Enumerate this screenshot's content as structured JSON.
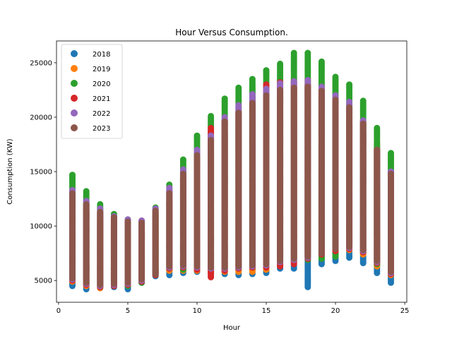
{
  "chart_data": {
    "type": "scatter",
    "title": "Hour Versus Consumption.",
    "xlabel": "Hour",
    "ylabel": "Consumption (KW)",
    "xlim": [
      -0.15,
      25.15
    ],
    "ylim": [
      3000,
      27000
    ],
    "xticks": [
      0,
      5,
      10,
      15,
      20,
      25
    ],
    "yticks": [
      5000,
      10000,
      15000,
      20000,
      25000
    ],
    "grid": false,
    "legend_position": "top-left",
    "x": [
      1,
      2,
      3,
      4,
      5,
      6,
      7,
      8,
      9,
      10,
      11,
      12,
      13,
      14,
      15,
      16,
      17,
      18,
      19,
      20,
      21,
      22,
      23,
      24
    ],
    "series": [
      {
        "name": "2018",
        "color": "#1f77b4",
        "min": [
          4500,
          4200,
          4300,
          4400,
          4200,
          4800,
          5400,
          5500,
          5700,
          5800,
          5700,
          5600,
          5500,
          5600,
          5700,
          6100,
          6100,
          4400,
          6500,
          6800,
          7100,
          6600,
          5700,
          4800
        ],
        "max": [
          12200,
          11200,
          10500,
          10000,
          9700,
          9600,
          10800,
          12100,
          13800,
          15300,
          17200,
          18600,
          19600,
          20700,
          21500,
          22500,
          22800,
          22500,
          21500,
          20600,
          19900,
          18700,
          16800,
          14500
        ]
      },
      {
        "name": "2019",
        "color": "#ff7f0e",
        "min": [
          4900,
          4500,
          4300,
          4500,
          4600,
          5100,
          5600,
          5900,
          5900,
          5900,
          5800,
          5800,
          5800,
          5800,
          6000,
          6900,
          7200,
          7400,
          7600,
          7600,
          7800,
          7400,
          6300,
          5500
        ],
        "max": [
          12700,
          11600,
          10900,
          10400,
          10100,
          10000,
          11200,
          12700,
          14400,
          16200,
          18200,
          19600,
          20800,
          21900,
          22800,
          23400,
          23600,
          23600,
          23000,
          22000,
          21200,
          19700,
          17700,
          15100
        ]
      },
      {
        "name": "2020",
        "color": "#2ca02c",
        "min": [
          5100,
          4700,
          4400,
          4500,
          4500,
          4800,
          5500,
          6100,
          6000,
          6100,
          6100,
          6100,
          6100,
          6200,
          6300,
          6600,
          6800,
          6900,
          7000,
          7200,
          8300,
          7600,
          6500,
          5600
        ],
        "max": [
          14700,
          13200,
          12000,
          11100,
          10600,
          10400,
          11700,
          13800,
          16100,
          18300,
          20100,
          21700,
          22700,
          23500,
          24300,
          24900,
          25900,
          25900,
          25100,
          23700,
          23000,
          21500,
          19000,
          16700
        ]
      },
      {
        "name": "2021",
        "color": "#d62728",
        "min": [
          5000,
          4600,
          4400,
          4500,
          4600,
          4900,
          5500,
          6100,
          6200,
          6000,
          5300,
          5900,
          6100,
          6200,
          6200,
          6300,
          6500,
          7000,
          7400,
          7700,
          7900,
          7600,
          6600,
          5600
        ],
        "max": [
          13000,
          12000,
          11200,
          10700,
          10300,
          10500,
          11500,
          13200,
          14500,
          16500,
          19000,
          19500,
          20500,
          21500,
          23000,
          23200,
          23200,
          23000,
          22600,
          21600,
          20800,
          19500,
          17000,
          14800
        ]
      },
      {
        "name": "2022",
        "color": "#9467bd",
        "min": [
          5100,
          4700,
          4500,
          4600,
          4700,
          5000,
          5600,
          6200,
          6300,
          6200,
          6100,
          6100,
          6200,
          6300,
          6400,
          6700,
          6900,
          7100,
          7500,
          7900,
          8000,
          7700,
          6700,
          5700
        ],
        "max": [
          13300,
          12300,
          11600,
          10900,
          10600,
          10500,
          11600,
          13500,
          15200,
          17000,
          18300,
          20000,
          21100,
          22100,
          22600,
          23100,
          23300,
          23400,
          22800,
          22000,
          21400,
          19700,
          17000,
          15000
        ]
      },
      {
        "name": "2023",
        "color": "#8c564b",
        "min": [
          5200,
          4800,
          4600,
          4700,
          4800,
          5100,
          5600,
          6300,
          6400,
          6300,
          6200,
          6200,
          6300,
          6400,
          6500,
          6800,
          7000,
          7200,
          7500,
          7900,
          8100,
          7800,
          6800,
          5800
        ],
        "max": [
          13000,
          12000,
          11300,
          10800,
          10400,
          10300,
          11400,
          13000,
          14800,
          16500,
          17900,
          19600,
          20400,
          21300,
          22000,
          22500,
          22700,
          22800,
          22400,
          21600,
          20900,
          19400,
          17000,
          14800
        ]
      }
    ]
  }
}
